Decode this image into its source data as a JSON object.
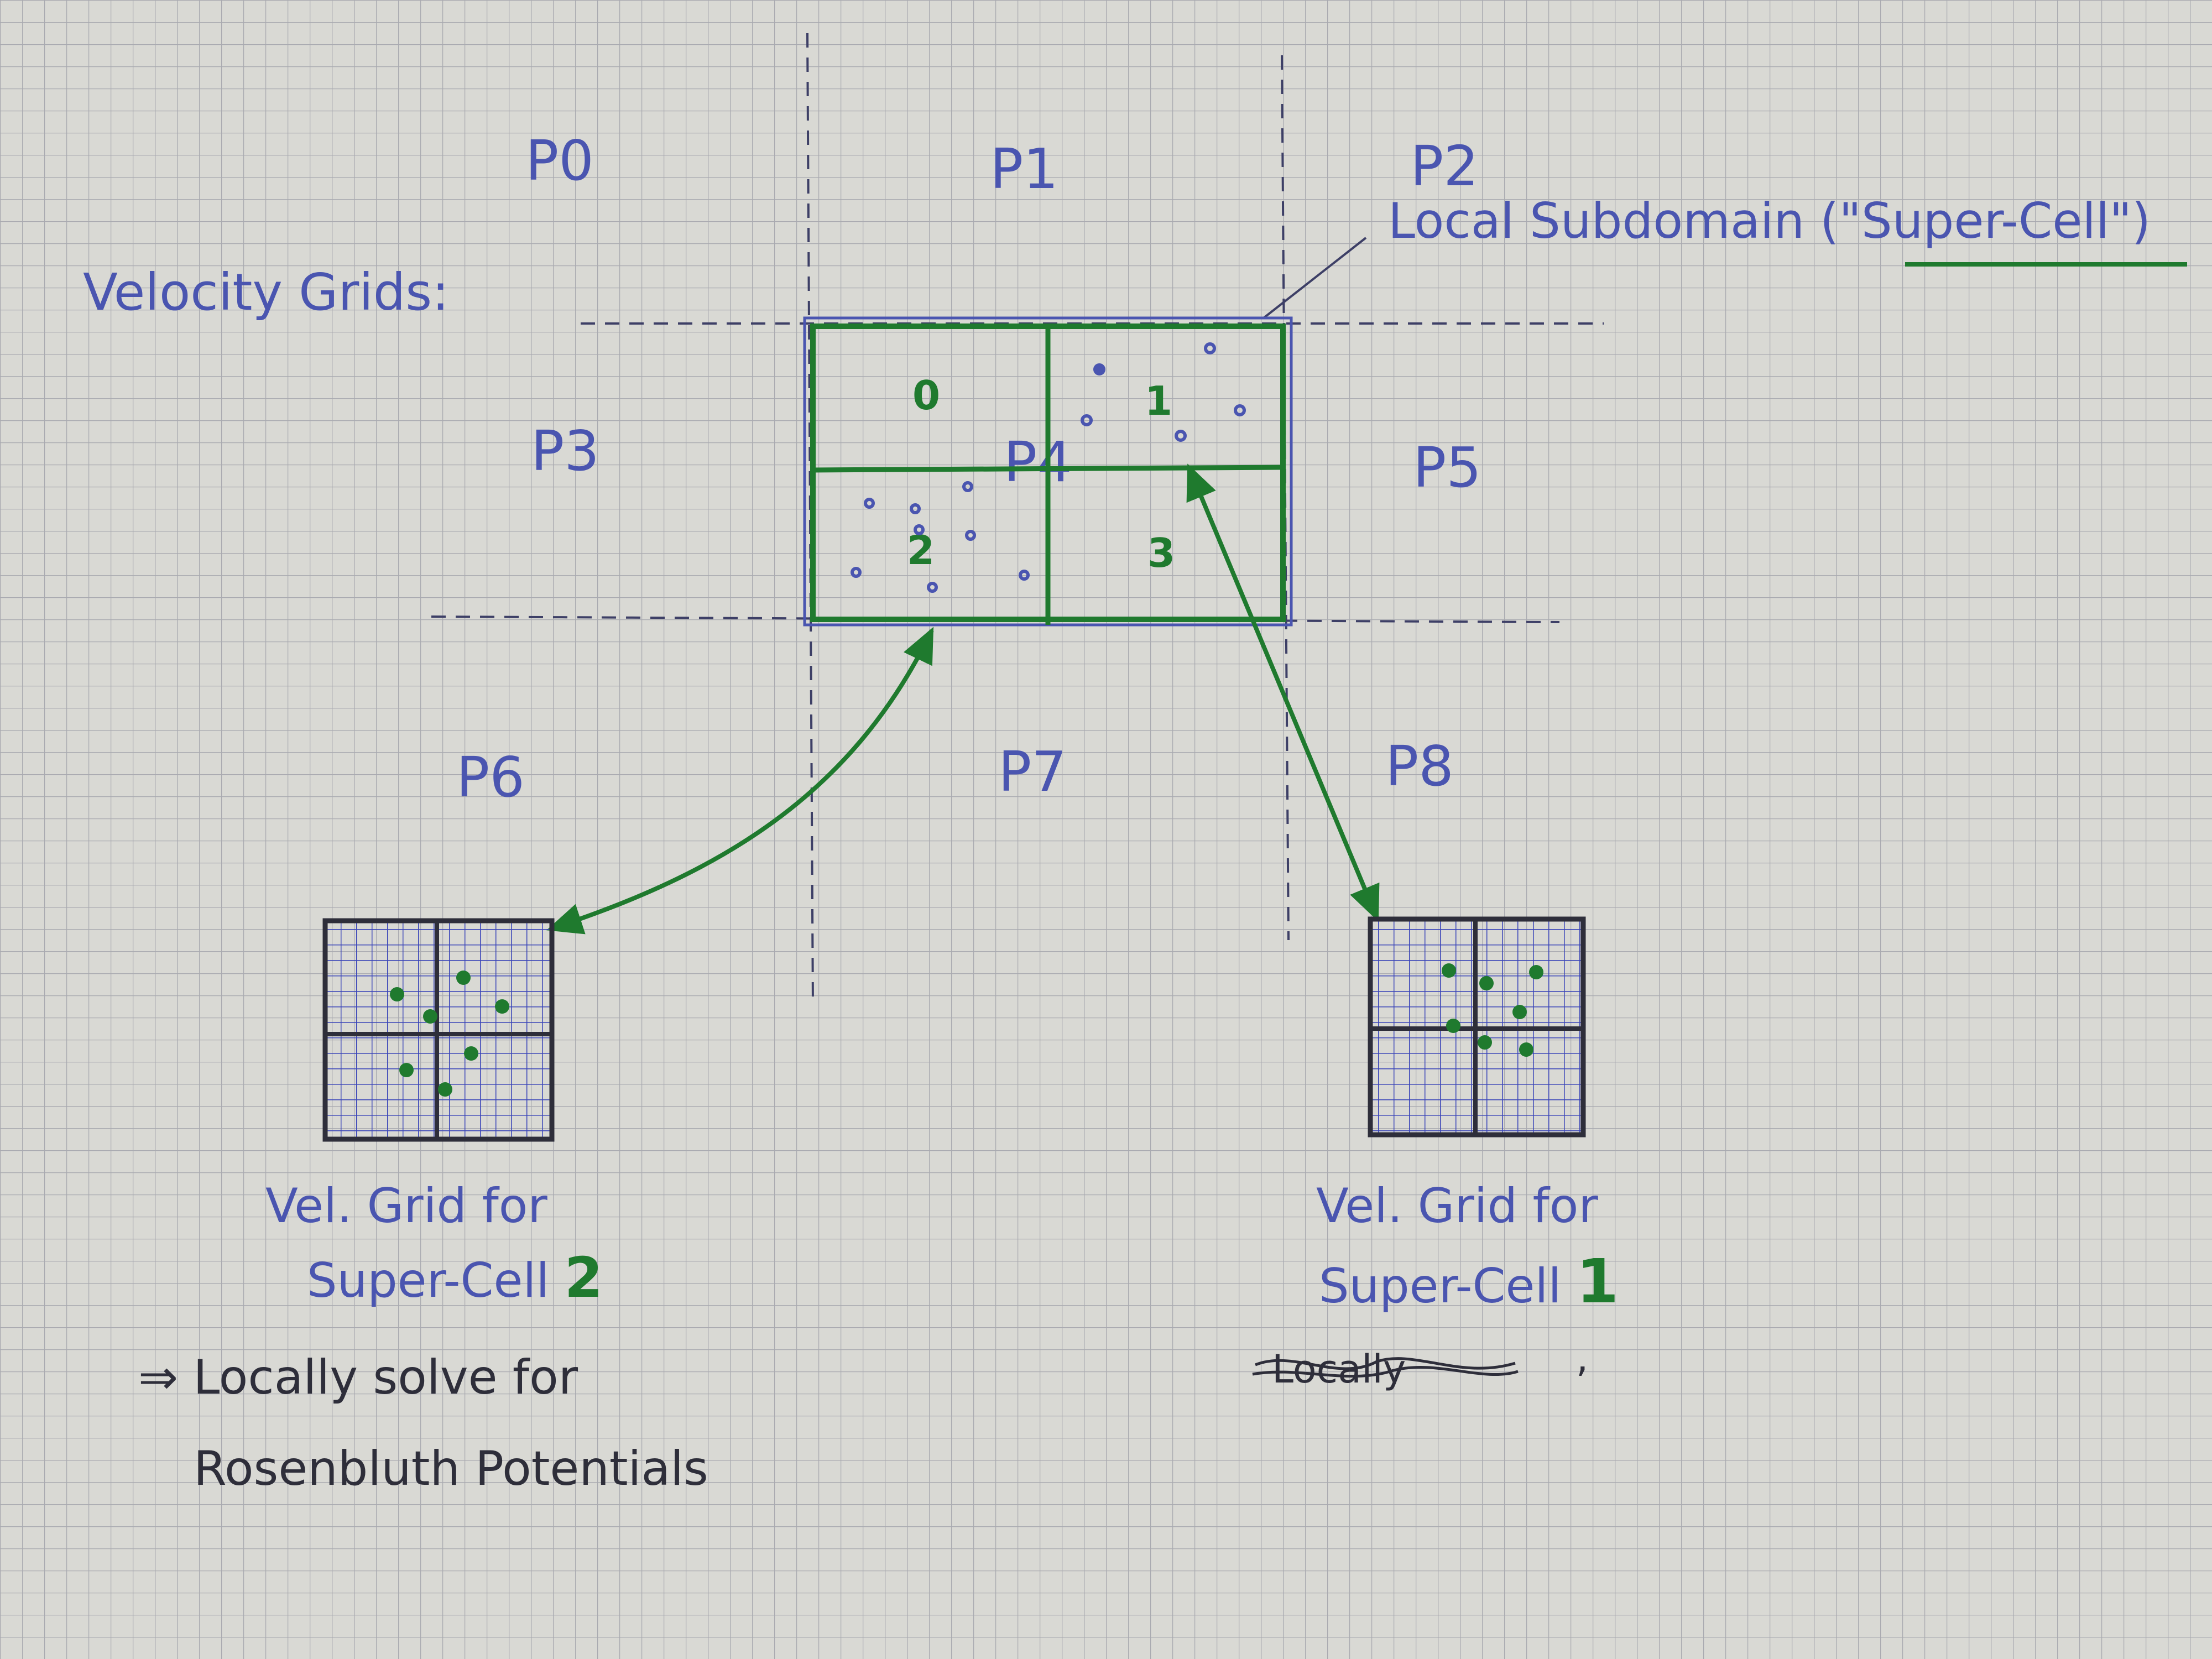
{
  "colors": {
    "paper": "#d9d9d4",
    "grid_line": "#a9aab0",
    "ink_blue": "#4a55b0",
    "ink_green": "#1f7a2e",
    "ink_dark": "#2e2e3a"
  },
  "partition_labels": [
    "P0",
    "P1",
    "P2",
    "P3",
    "P4",
    "P5",
    "P6",
    "P7",
    "P8"
  ],
  "velocity_grids_label": "Velocity Grids:",
  "local_subdomain_label": {
    "prefix": "Local Subdomain (\"",
    "underlined": "Super-Cell",
    "suffix": "\")"
  },
  "super_cell_labels": [
    "0",
    "1",
    "2",
    "3"
  ],
  "left_caption": {
    "line1": "Vel. Grid for",
    "line2": "Super-Cell",
    "number": "2"
  },
  "right_caption": {
    "line1": "Vel. Grid for",
    "line2": "Super-Cell",
    "number": "1"
  },
  "note": {
    "arrow": "⇒",
    "line1": "Locally solve for",
    "line2": "Rosenbluth Potentials"
  },
  "crossed_out_text": "Locally",
  "trailing_mark": ","
}
